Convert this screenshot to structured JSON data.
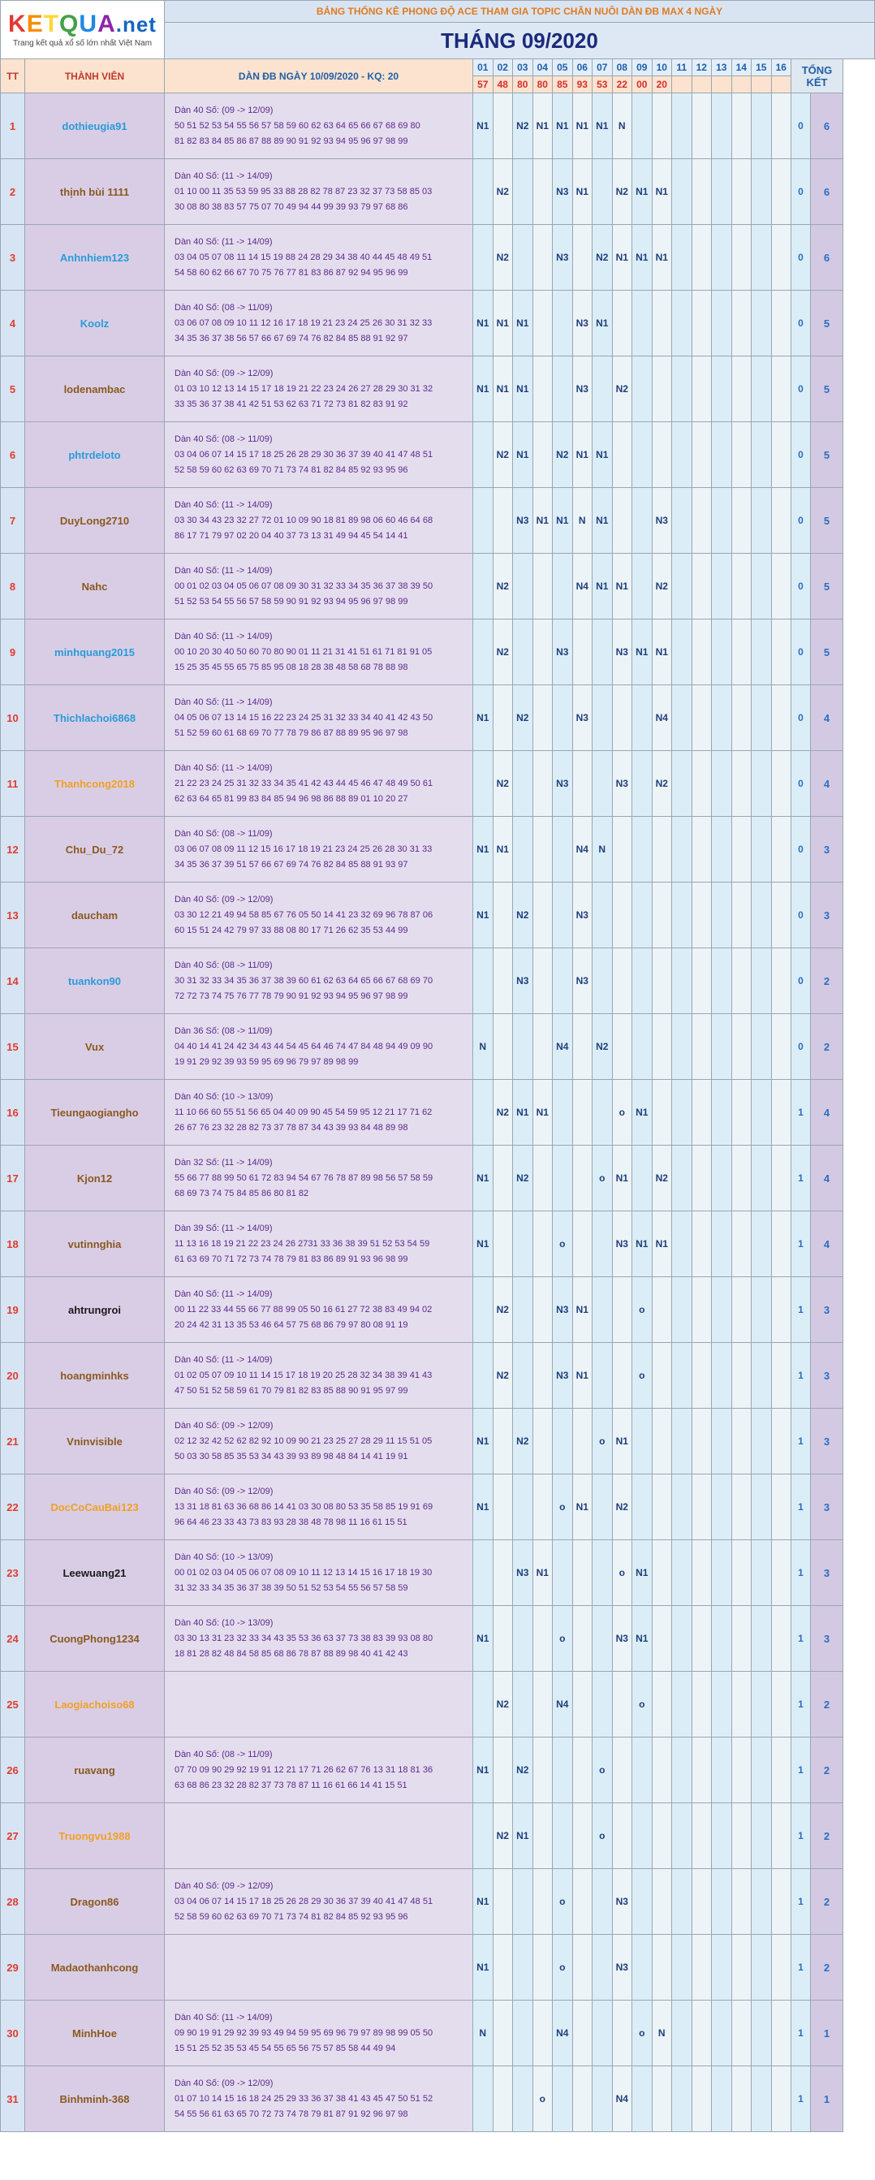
{
  "logo": {
    "brand": "KETQUA.net",
    "tagline": "Trang kết quả xổ số lớn nhất Việt Nam"
  },
  "title": "BẢNG THỐNG KÊ PHONG ĐỘ ACE THAM GIA TOPIC CHĂN NUÔI DÀN ĐB MAX 4 NGÀY",
  "month": "THÁNG 09/2020",
  "headers": {
    "tt": "TT",
    "member": "THÀNH VIÊN",
    "dan": "DÀN ĐB NGÀY 10/09/2020 - KQ: 20",
    "total": "TỔNG KẾT"
  },
  "days": [
    "01",
    "02",
    "03",
    "04",
    "05",
    "06",
    "07",
    "08",
    "09",
    "10",
    "11",
    "12",
    "13",
    "14",
    "15",
    "16"
  ],
  "results": [
    "57",
    "48",
    "80",
    "80",
    "85",
    "93",
    "53",
    "22",
    "00",
    "20",
    "",
    "",
    "",
    "",
    "",
    ""
  ],
  "colors": {
    "accent_red": "#e23b2e",
    "header_blue": "#1f5fa8",
    "name_blue": "#2a9bd8",
    "name_brown": "#8a5a1e",
    "name_orange": "#f0a024"
  },
  "rows": [
    {
      "tt": "1",
      "name": "dothieugia91",
      "color": "blue",
      "dan_title": "Dàn 40 Số: (09 -> 12/09)",
      "dan_l1": "50 51 52 53 54 55 56 57 58 59 60 62 63 64 65 66 67 68 69 80",
      "dan_l2": "81 82 83 84 85 86 87 88 89 90 91 92 93 94 95 96 97 98 99",
      "cells": [
        "N1",
        "",
        "N2",
        "N1",
        "N1",
        "N1",
        "N1",
        "N",
        "",
        "",
        "",
        "",
        "",
        "",
        "",
        ""
      ],
      "s1": "0",
      "s2": "6"
    },
    {
      "tt": "2",
      "name": "thịnh bùi 1111",
      "color": "brown",
      "dan_title": "Dàn 40 Số: (11 -> 14/09)",
      "dan_l1": "01 10 00 11 35 53 59 95 33 88 28 82 78 87 23 32 37 73 58 85 03",
      "dan_l2": "30 08 80 38 83 57 75 07 70 49 94 44 99 39 93 79 97 68 86",
      "cells": [
        "",
        "N2",
        "",
        "",
        "N3",
        "N1",
        "",
        "N2",
        "N1",
        "N1",
        "",
        "",
        "",
        "",
        "",
        ""
      ],
      "s1": "0",
      "s2": "6"
    },
    {
      "tt": "3",
      "name": "Anhnhiem123",
      "color": "blue",
      "dan_title": "Dàn 40 Số: (11 -> 14/09)",
      "dan_l1": "03 04 05 07 08 11 14 15 19 88 24 28 29 34 38 40 44 45 48 49 51",
      "dan_l2": "54 58 60 62 66 67 70 75 76 77 81 83 86 87 92 94 95 96 99",
      "cells": [
        "",
        "N2",
        "",
        "",
        "N3",
        "",
        "N2",
        "N1",
        "N1",
        "N1",
        "",
        "",
        "",
        "",
        "",
        ""
      ],
      "s1": "0",
      "s2": "6"
    },
    {
      "tt": "4",
      "name": "Koolz",
      "color": "blue",
      "dan_title": "Dàn 40 Số: (08 -> 11/09)",
      "dan_l1": "03 06 07 08 09 10 11 12 16 17 18 19 21 23 24 25 26 30 31 32 33",
      "dan_l2": "34 35 36 37 38 56 57 66 67 69 74 76 82 84 85 88 91 92 97",
      "cells": [
        "N1",
        "N1",
        "N1",
        "",
        "",
        "N3",
        "N1",
        "",
        "",
        "",
        "",
        "",
        "",
        "",
        "",
        ""
      ],
      "s1": "0",
      "s2": "5"
    },
    {
      "tt": "5",
      "name": "lodenambac",
      "color": "brown",
      "dan_title": "Dàn 40 Số: (09 -> 12/09)",
      "dan_l1": "01 03 10 12 13 14 15 17 18 19 21 22 23 24 26 27 28 29 30 31 32",
      "dan_l2": "33 35 36 37 38 41 42 51 53 62 63 71 72 73 81 82 83 91 92",
      "cells": [
        "N1",
        "N1",
        "N1",
        "",
        "",
        "N3",
        "",
        "N2",
        "",
        "",
        "",
        "",
        "",
        "",
        "",
        ""
      ],
      "s1": "0",
      "s2": "5"
    },
    {
      "tt": "6",
      "name": "phtrdeloto",
      "color": "blue",
      "dan_title": "Dàn 40 Số: (08 -> 11/09)",
      "dan_l1": "03 04 06 07 14 15 17 18 25 26 28 29 30 36 37 39 40 41 47 48 51",
      "dan_l2": "52 58 59 60 62 63 69 70 71 73 74 81 82 84 85 92 93 95 96",
      "cells": [
        "",
        "N2",
        "N1",
        "",
        "N2",
        "N1",
        "N1",
        "",
        "",
        "",
        "",
        "",
        "",
        "",
        "",
        ""
      ],
      "s1": "0",
      "s2": "5"
    },
    {
      "tt": "7",
      "name": "DuyLong2710",
      "color": "brown",
      "dan_title": "Dàn 40 Số: (11 -> 14/09)",
      "dan_l1": "03 30 34 43 23 32 27 72 01 10 09 90 18 81 89 98 06 60 46 64 68",
      "dan_l2": "86 17 71 79 97 02 20 04 40 37 73 13 31 49 94 45 54 14 41",
      "cells": [
        "",
        "",
        "N3",
        "N1",
        "N1",
        "N",
        "N1",
        "",
        "",
        "N3",
        "",
        "",
        "",
        "",
        "",
        ""
      ],
      "s1": "0",
      "s2": "5"
    },
    {
      "tt": "8",
      "name": "Nahc",
      "color": "brown",
      "dan_title": "Dàn 40 Số: (11 -> 14/09)",
      "dan_l1": "00 01 02 03 04 05 06 07 08 09 30 31 32 33 34 35 36 37 38 39 50",
      "dan_l2": "51 52 53 54 55 56 57 58 59 90 91 92 93 94 95 96 97 98 99",
      "cells": [
        "",
        "N2",
        "",
        "",
        "",
        "N4",
        "N1",
        "N1",
        "",
        "N2",
        "",
        "",
        "",
        "",
        "",
        ""
      ],
      "s1": "0",
      "s2": "5"
    },
    {
      "tt": "9",
      "name": "minhquang2015",
      "color": "blue",
      "dan_title": "Dàn 40 Số: (11 -> 14/09)",
      "dan_l1": "00 10 20 30 40 50 60 70 80 90 01 11 21 31 41 51 61 71 81 91 05",
      "dan_l2": "15 25 35 45 55 65 75 85 95 08 18 28 38 48 58 68 78 88 98",
      "cells": [
        "",
        "N2",
        "",
        "",
        "N3",
        "",
        "",
        "N3",
        "N1",
        "N1",
        "",
        "",
        "",
        "",
        "",
        ""
      ],
      "s1": "0",
      "s2": "5"
    },
    {
      "tt": "10",
      "name": "Thichlachoi6868",
      "color": "blue",
      "dan_title": "Dàn 40 Số: (11 -> 14/09)",
      "dan_l1": "04 05 06 07 13 14 15 16 22 23 24 25 31 32 33 34 40 41 42 43 50",
      "dan_l2": "51 52 59 60 61 68 69 70 77 78 79 86 87 88 89 95 96 97 98",
      "cells": [
        "N1",
        "",
        "N2",
        "",
        "",
        "N3",
        "",
        "",
        "",
        "N4",
        "",
        "",
        "",
        "",
        "",
        ""
      ],
      "s1": "0",
      "s2": "4"
    },
    {
      "tt": "11",
      "name": "Thanhcong2018",
      "color": "orange",
      "dan_title": "Dàn 40 Số: (11 -> 14/09)",
      "dan_l1": "21 22 23 24 25 31 32 33 34 35 41 42 43 44 45 46 47 48 49 50 61",
      "dan_l2": "62 63 64 65 81 99 83 84 85 94 96 98 86 88 89 01 10 20 27",
      "cells": [
        "",
        "N2",
        "",
        "",
        "N3",
        "",
        "",
        "N3",
        "",
        "N2",
        "",
        "",
        "",
        "",
        "",
        ""
      ],
      "s1": "0",
      "s2": "4"
    },
    {
      "tt": "12",
      "name": "Chu_Du_72",
      "color": "brown",
      "dan_title": "Dàn 40 Số: (08 -> 11/09)",
      "dan_l1": "03 06 07 08 09 11 12 15 16 17 18 19 21 23 24 25 26 28 30 31 33",
      "dan_l2": "34 35 36 37 39 51 57 66 67 69 74 76 82 84 85 88 91 93 97",
      "cells": [
        "N1",
        "N1",
        "",
        "",
        "",
        "N4",
        "N",
        "",
        "",
        "",
        "",
        "",
        "",
        "",
        "",
        ""
      ],
      "s1": "0",
      "s2": "3"
    },
    {
      "tt": "13",
      "name": "daucham",
      "color": "brown",
      "dan_title": "Dàn 40 Số: (09 -> 12/09)",
      "dan_l1": "03 30 12 21 49 94 58 85 67 76 05 50 14 41 23 32 69 96 78 87 06",
      "dan_l2": "60 15 51 24 42 79 97 33 88 08 80 17 71 26 62 35 53 44 99",
      "cells": [
        "N1",
        "",
        "N2",
        "",
        "",
        "N3",
        "",
        "",
        "",
        "",
        "",
        "",
        "",
        "",
        "",
        ""
      ],
      "s1": "0",
      "s2": "3"
    },
    {
      "tt": "14",
      "name": "tuankon90",
      "color": "blue",
      "dan_title": "Dàn 40 Số: (08 -> 11/09)",
      "dan_l1": "30 31 32 33 34 35 36 37 38 39 60 61 62 63 64 65 66 67 68 69 70",
      "dan_l2": "72 72 73 74 75 76 77 78 79 90 91 92 93 94 95 96 97 98 99",
      "cells": [
        "",
        "",
        "N3",
        "",
        "",
        "N3",
        "",
        "",
        "",
        "",
        "",
        "",
        "",
        "",
        "",
        ""
      ],
      "s1": "0",
      "s2": "2"
    },
    {
      "tt": "15",
      "name": "Vux",
      "color": "brown",
      "dan_title": "Dàn 36 Số: (08 -> 11/09)",
      "dan_l1": "04 40 14 41 24 42 34 43 44 54 45 64 46 74 47 84 48 94 49 09 90",
      "dan_l2": "19 91 29 92 39 93 59 95 69 96 79 97 89 98 99",
      "cells": [
        "N",
        "",
        "",
        "",
        "N4",
        "",
        "N2",
        "",
        "",
        "",
        "",
        "",
        "",
        "",
        "",
        ""
      ],
      "s1": "0",
      "s2": "2"
    },
    {
      "tt": "16",
      "name": "Tieungaogiangho",
      "color": "brown",
      "dan_title": "Dàn 40 Số: (10 -> 13/09)",
      "dan_l1": "11 10 66 60 55 51 56 65 04 40 09 90 45 54 59 95 12 21 17 71 62",
      "dan_l2": "26 67 76 23 32 28 82 73 37 78 87 34 43 39 93 84 48 89 98",
      "cells": [
        "",
        "N2",
        "N1",
        "N1",
        "",
        "",
        "",
        "o",
        "N1",
        "",
        "",
        "",
        "",
        "",
        "",
        ""
      ],
      "s1": "1",
      "s2": "4"
    },
    {
      "tt": "17",
      "name": "Kjon12",
      "color": "brown",
      "dan_title": "Dàn 32 Số: (11 -> 14/09)",
      "dan_l1": "55 66 77 88 99 50 61 72 83 94 54 67 76 78 87 89 98 56 57 58 59",
      "dan_l2": "68 69 73 74 75 84 85 86 80 81 82",
      "cells": [
        "N1",
        "",
        "N2",
        "",
        "",
        "",
        "o",
        "N1",
        "",
        "N2",
        "",
        "",
        "",
        "",
        "",
        ""
      ],
      "s1": "1",
      "s2": "4"
    },
    {
      "tt": "18",
      "name": "vutinnghia",
      "color": "brown",
      "dan_title": "Dàn 39 Số: (11 -> 14/09)",
      "dan_l1": "11 13 16 18 19 21 22 23 24 26 2731 33 36 38 39 51 52 53 54 59",
      "dan_l2": "61 63 69 70 71 72 73 74 78 79 81 83 86 89 91 93 96 98 99",
      "cells": [
        "N1",
        "",
        "",
        "",
        "o",
        "",
        "",
        "N3",
        "N1",
        "N1",
        "",
        "",
        "",
        "",
        "",
        ""
      ],
      "s1": "1",
      "s2": "4"
    },
    {
      "tt": "19",
      "name": "ahtrungroi",
      "color": "dark",
      "dan_title": "Dàn 40 Số: (11 -> 14/09)",
      "dan_l1": "00 11 22 33 44 55 66 77 88 99 05 50 16 61 27 72 38 83 49 94 02",
      "dan_l2": "20 24 42 31 13 35 53 46 64 57 75 68 86 79 97 80 08 91 19",
      "cells": [
        "",
        "N2",
        "",
        "",
        "N3",
        "N1",
        "",
        "",
        "o",
        "",
        "",
        "",
        "",
        "",
        "",
        ""
      ],
      "s1": "1",
      "s2": "3"
    },
    {
      "tt": "20",
      "name": "hoangminhks",
      "color": "brown",
      "dan_title": "Dàn 40 Số: (11 -> 14/09)",
      "dan_l1": "01 02 05 07 09 10 11 14 15 17 18 19 20 25 28 32 34 38 39 41 43",
      "dan_l2": "47 50 51 52 58 59 61 70 79 81 82 83 85 88 90 91 95 97 99",
      "cells": [
        "",
        "N2",
        "",
        "",
        "N3",
        "N1",
        "",
        "",
        "o",
        "",
        "",
        "",
        "",
        "",
        "",
        ""
      ],
      "s1": "1",
      "s2": "3"
    },
    {
      "tt": "21",
      "name": "Vninvisible",
      "color": "brown",
      "dan_title": "Dàn 40 Số: (09 -> 12/09)",
      "dan_l1": "02 12 32 42 52 62 82 92 10 09 90 21 23 25 27 28 29 11 15 51 05",
      "dan_l2": "50 03 30 58 85 35 53 34 43 39 93 89 98 48 84 14 41 19 91",
      "cells": [
        "N1",
        "",
        "N2",
        "",
        "",
        "",
        "o",
        "N1",
        "",
        "",
        "",
        "",
        "",
        "",
        "",
        ""
      ],
      "s1": "1",
      "s2": "3"
    },
    {
      "tt": "22",
      "name": "DocCoCauBai123",
      "color": "orange",
      "dan_title": "Dàn 40 Số: (09 -> 12/09)",
      "dan_l1": "13 31 18 81 63 36 68 86 14 41 03 30 08 80 53 35 58 85 19 91 69",
      "dan_l2": "96 64 46 23 33 43 73 83 93 28 38 48 78 98 11 16 61 15 51",
      "cells": [
        "N1",
        "",
        "",
        "",
        "o",
        "N1",
        "",
        "N2",
        "",
        "",
        "",
        "",
        "",
        "",
        "",
        ""
      ],
      "s1": "1",
      "s2": "3"
    },
    {
      "tt": "23",
      "name": "Leewuang21",
      "color": "dark",
      "dan_title": "Dàn 40 Số: (10 -> 13/09)",
      "dan_l1": "00 01 02 03 04 05 06 07 08 09 10 11 12 13 14 15 16 17 18 19 30",
      "dan_l2": "31 32 33 34 35 36 37 38 39 50 51 52 53 54 55 56 57 58 59",
      "cells": [
        "",
        "",
        "N3",
        "N1",
        "",
        "",
        "",
        "o",
        "N1",
        "",
        "",
        "",
        "",
        "",
        "",
        ""
      ],
      "s1": "1",
      "s2": "3"
    },
    {
      "tt": "24",
      "name": "CuongPhong1234",
      "color": "brown",
      "dan_title": "Dàn 40 Số: (10 -> 13/09)",
      "dan_l1": "03 30 13 31 23 32 33 34 43 35 53 36 63 37 73 38 83 39 93 08 80",
      "dan_l2": "18 81 28 82 48 84 58 85 68 86 78 87 88 89 98 40 41 42 43",
      "cells": [
        "N1",
        "",
        "",
        "",
        "o",
        "",
        "",
        "N3",
        "N1",
        "",
        "",
        "",
        "",
        "",
        "",
        ""
      ],
      "s1": "1",
      "s2": "3"
    },
    {
      "tt": "25",
      "name": "Laogiachoiso68",
      "color": "orange",
      "dan_title": "",
      "dan_l1": "",
      "dan_l2": "",
      "cells": [
        "",
        "N2",
        "",
        "",
        "N4",
        "",
        "",
        "",
        "o",
        "",
        "",
        "",
        "",
        "",
        "",
        ""
      ],
      "s1": "1",
      "s2": "2"
    },
    {
      "tt": "26",
      "name": "ruavang",
      "color": "brown",
      "dan_title": "Dàn 40 Số: (08 -> 11/09)",
      "dan_l1": "07 70 09 90 29 92 19 91 12 21 17 71 26 62 67 76 13 31 18 81 36",
      "dan_l2": "63 68 86 23 32 28 82 37 73 78 87 11 16 61 66 14 41 15 51",
      "cells": [
        "N1",
        "",
        "N2",
        "",
        "",
        "",
        "o",
        "",
        "",
        "",
        "",
        "",
        "",
        "",
        "",
        ""
      ],
      "s1": "1",
      "s2": "2"
    },
    {
      "tt": "27",
      "name": "Truongvu1988",
      "color": "orange",
      "dan_title": "",
      "dan_l1": "",
      "dan_l2": "",
      "cells": [
        "",
        "N2",
        "N1",
        "",
        "",
        "",
        "o",
        "",
        "",
        "",
        "",
        "",
        "",
        "",
        "",
        ""
      ],
      "s1": "1",
      "s2": "2"
    },
    {
      "tt": "28",
      "name": "Dragon86",
      "color": "brown",
      "dan_title": "Dàn 40 Số: (09 -> 12/09)",
      "dan_l1": "03 04 06 07 14 15 17 18 25 26 28 29 30 36 37 39 40 41 47 48 51",
      "dan_l2": "52 58 59 60 62 63 69 70 71 73 74 81 82 84 85 92 93 95 96",
      "cells": [
        "N1",
        "",
        "",
        "",
        "o",
        "",
        "",
        "N3",
        "",
        "",
        "",
        "",
        "",
        "",
        "",
        ""
      ],
      "s1": "1",
      "s2": "2"
    },
    {
      "tt": "29",
      "name": "Madaothanhcong",
      "color": "brown",
      "dan_title": "",
      "dan_l1": "",
      "dan_l2": "",
      "cells": [
        "N1",
        "",
        "",
        "",
        "o",
        "",
        "",
        "N3",
        "",
        "",
        "",
        "",
        "",
        "",
        "",
        ""
      ],
      "s1": "1",
      "s2": "2"
    },
    {
      "tt": "30",
      "name": "MinhHoe",
      "color": "brown",
      "dan_title": "Dàn 40 Số: (11 -> 14/09)",
      "dan_l1": "09 90 19 91 29 92 39 93 49 94 59 95 69 96 79 97 89 98 99 05 50",
      "dan_l2": "15 51 25 52 35 53 45 54 55 65 56 75 57 85 58 44 49 94",
      "cells": [
        "N",
        "",
        "",
        "",
        "N4",
        "",
        "",
        "",
        "o",
        "N",
        "",
        "",
        "",
        "",
        "",
        ""
      ],
      "s1": "1",
      "s2": "1"
    },
    {
      "tt": "31",
      "name": "Binhminh-368",
      "color": "brown",
      "dan_title": "Dàn 40 Số: (09 -> 12/09)",
      "dan_l1": "01 07 10 14 15 16 18 24 25 29 33 36 37 38 41 43 45 47 50 51 52",
      "dan_l2": "54 55 56 61 63 65 70 72 73 74 78 79 81 87 91 92 96 97 98",
      "cells": [
        "",
        "",
        "",
        "o",
        "",
        "",
        "",
        "N4",
        "",
        "",
        "",
        "",
        "",
        "",
        "",
        ""
      ],
      "s1": "1",
      "s2": "1"
    }
  ]
}
